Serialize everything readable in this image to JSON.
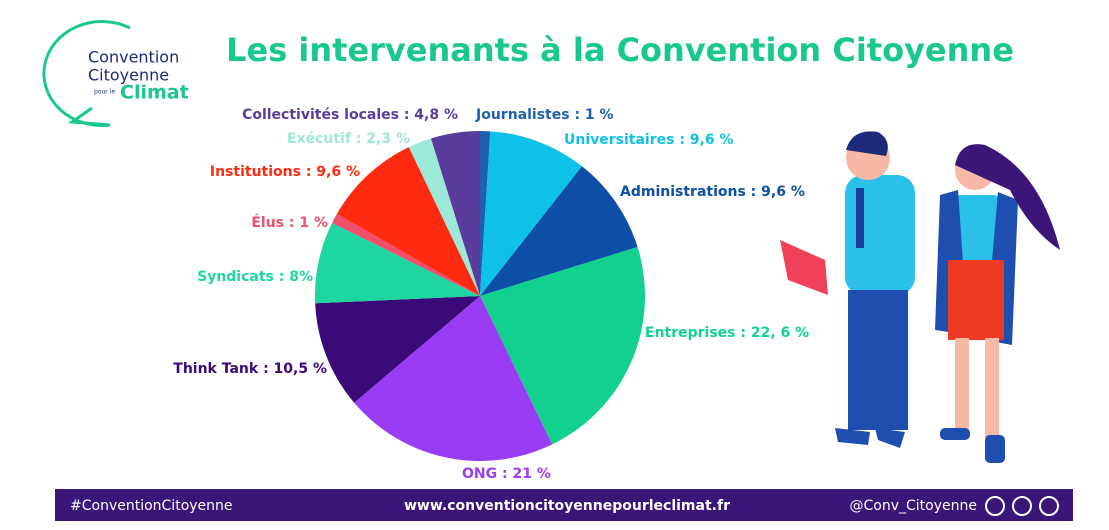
{
  "chart_data": {
    "type": "pie",
    "title": "Les intervenants à la Convention Citoyenne",
    "values": [
      1,
      9.6,
      9.6,
      22.6,
      21,
      10.5,
      8,
      1,
      9.6,
      2.3,
      4.8
    ],
    "value_labels": [
      "Journalistes : 1 %",
      "Universitaires : 9,6 %",
      "Administrations : 9,6 %",
      "Entreprises : 22, 6 %",
      "ONG : 21 %",
      "Think Tank : 10,5 %",
      "Syndicats : 8%",
      "Élus : 1 %",
      "Institutions : 9,6  %",
      "Exécutif : 2,3 %",
      "Collectivités locales : 4,8 %"
    ],
    "colors": [
      "#1f5fb0",
      "#0ec1e6",
      "#0d4ea6",
      "#12d18e",
      "#9b3cf5",
      "#3a0a78",
      "#1ed6a0",
      "#f0506e",
      "#ff2a10",
      "#9ee8d8",
      "#5a3c9c"
    ]
  },
  "logo": {
    "line1": "Convention",
    "line2": "Citoyenne",
    "line3": "pour le",
    "line4": "Climat"
  },
  "footer": {
    "hashtag": "#ConventionCitoyenne",
    "url": "www.conventioncitoyennepourleclimat.fr",
    "handle": "@Conv_Citoyenne"
  }
}
